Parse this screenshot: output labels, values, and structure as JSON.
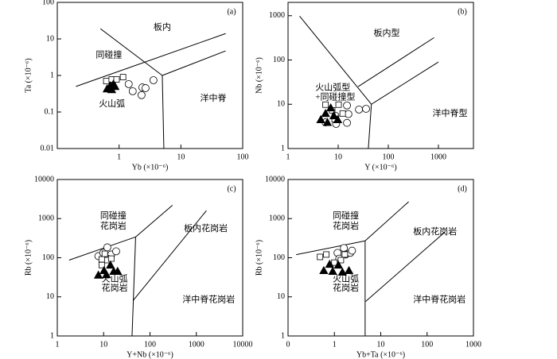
{
  "chart_data": [
    {
      "type": "scatter",
      "panel_label": "(a)",
      "x_label": "Yb (×10⁻⁶)",
      "y_label": "Ta (×10⁻⁶)",
      "log_x": true,
      "log_y": true,
      "xlim": [
        0.1,
        100
      ],
      "xticks": [
        1,
        10,
        100
      ],
      "ylim": [
        0.01,
        100
      ],
      "yticks": [
        0.01,
        0.1,
        1,
        10,
        100
      ],
      "series": [
        {
          "marker": "circle",
          "color": "#000000",
          "x": [
            1.43,
            1.66,
            2.31,
            2.38,
            2.68,
            3.6
          ],
          "y": [
            0.58,
            0.37,
            0.29,
            0.47,
            0.45,
            0.74
          ]
        },
        {
          "marker": "square",
          "color": "#000000",
          "x": [
            0.62,
            0.76,
            0.91,
            1.16
          ],
          "y": [
            0.7,
            0.78,
            0.78,
            0.9
          ]
        },
        {
          "marker": "triangle",
          "color": "#000000",
          "x": [
            0.64,
            0.72,
            0.81,
            0.76,
            0.86
          ],
          "y": [
            0.43,
            0.52,
            0.58,
            0.41,
            0.5
          ]
        }
      ],
      "boundaries": [
        {
          "x": [
            0.2,
            53
          ],
          "y": [
            0.5,
            14
          ]
        },
        {
          "x": [
            0.5,
            5
          ],
          "y": [
            19,
            1
          ]
        },
        {
          "x": [
            5,
            53
          ],
          "y": [
            1,
            4.7
          ]
        },
        {
          "x": [
            5,
            5.3
          ],
          "y": [
            1,
            0.01
          ]
        }
      ],
      "annotations": [
        {
          "text": "板内",
          "x": 3.6,
          "y": 20
        },
        {
          "text": "同碰撞",
          "x": 0.42,
          "y": 3.5
        },
        {
          "text": "火山弧",
          "x": 0.47,
          "y": 0.16
        },
        {
          "text": "洋中脊",
          "x": 20.5,
          "y": 0.23
        }
      ]
    },
    {
      "type": "scatter",
      "panel_label": "(b)",
      "x_label": "Y (×10⁻⁶)",
      "y_label": "Nb (×10⁻⁶)",
      "log_x": true,
      "log_y": true,
      "xlim": [
        1,
        5000
      ],
      "xticks": [
        1,
        10,
        100,
        1000
      ],
      "ylim": [
        1,
        2000
      ],
      "yticks": [
        1,
        10,
        100,
        1000
      ],
      "series": [
        {
          "marker": "circle",
          "color": "#000000",
          "x": [
            5.6,
            8.8,
            9.1,
            15,
            16,
            15,
            26,
            36
          ],
          "y": [
            3.9,
            5.5,
            3.6,
            9.4,
            6,
            3.8,
            7.6,
            7.9
          ]
        },
        {
          "marker": "square",
          "color": "#000000",
          "x": [
            5.6,
            7.6,
            10.2,
            12.3,
            8.5
          ],
          "y": [
            9.8,
            7.3,
            9.8,
            6.2,
            4.6
          ]
        },
        {
          "marker": "triangle",
          "color": "#000000",
          "x": [
            4.5,
            5.6,
            7.1,
            6.1,
            8.2,
            9.8
          ],
          "y": [
            4.5,
            6.2,
            8.3,
            3.9,
            5.5,
            4.5
          ]
        }
      ],
      "boundaries": [
        {
          "x": [
            1.7,
            46
          ],
          "y": [
            980,
            10
          ]
        },
        {
          "x": [
            25,
            820
          ],
          "y": [
            25,
            320
          ]
        },
        {
          "x": [
            46,
            1000
          ],
          "y": [
            10,
            90
          ]
        },
        {
          "x": [
            46,
            40
          ],
          "y": [
            10,
            1
          ]
        }
      ],
      "annotations": [
        {
          "text": "板内型",
          "x": 51,
          "y": 390
        },
        {
          "text": "火山弧型",
          "x": 3.5,
          "y": 23
        },
        {
          "text": "+同碰撞型",
          "x": 3.5,
          "y": 14
        },
        {
          "text": "洋中脊型",
          "x": 760,
          "y": 6
        }
      ]
    },
    {
      "type": "scatter",
      "panel_label": "(c)",
      "x_label": "Y+Nb (×10⁻⁶)",
      "y_label": "Rb (×10⁻⁶)",
      "log_x": true,
      "log_y": true,
      "xlim": [
        1,
        10000
      ],
      "xticks": [
        1,
        10,
        100,
        1000,
        10000
      ],
      "ylim": [
        1,
        10000
      ],
      "yticks": [
        1,
        10,
        100,
        1000,
        10000
      ],
      "series": [
        {
          "marker": "circle",
          "color": "#000000",
          "x": [
            7.7,
            9.8,
            12,
            14.6,
            18.6,
            12
          ],
          "y": [
            110,
            133,
            184,
            121,
            146,
            95
          ]
        },
        {
          "marker": "square",
          "color": "#000000",
          "x": [
            9.1,
            10.6,
            12,
            14.6,
            9.1
          ],
          "y": [
            91,
            126,
            87,
            95,
            65
          ]
        },
        {
          "marker": "triangle",
          "color": "#000000",
          "x": [
            7.7,
            10.2,
            11.5,
            14,
            16.5,
            20
          ],
          "y": [
            36,
            47,
            37,
            65,
            45,
            45
          ]
        }
      ],
      "boundaries": [
        {
          "x": [
            1.8,
            49
          ],
          "y": [
            87,
            340
          ]
        },
        {
          "x": [
            49,
            306
          ],
          "y": [
            340,
            2200
          ]
        },
        {
          "x": [
            49,
            41
          ],
          "y": [
            340,
            1
          ]
        },
        {
          "x": [
            43,
            1650
          ],
          "y": [
            8,
            1600
          ]
        }
      ],
      "annotations": [
        {
          "text": "同碰撞",
          "x": 8.4,
          "y": 1150
        },
        {
          "text": "花岗岩",
          "x": 8.4,
          "y": 620
        },
        {
          "text": "板内花岗岩",
          "x": 540,
          "y": 540
        },
        {
          "text": "火山弧",
          "x": 9,
          "y": 28
        },
        {
          "text": "花岗岩",
          "x": 9,
          "y": 16
        },
        {
          "text": "洋中脊花岗岩",
          "x": 500,
          "y": 8.3
        }
      ]
    },
    {
      "type": "scatter",
      "panel_label": "(d)",
      "x_label": "Yb+Ta (×10⁻⁶)",
      "y_label": "Rb (×10⁻⁶)",
      "log_x": true,
      "log_y": true,
      "xlim": [
        0.1,
        1000
      ],
      "xticks": [
        {
          "value": 0.1,
          "label": "0"
        },
        1,
        10,
        100,
        1000
      ],
      "ylim": [
        1,
        10000
      ],
      "yticks": [
        1,
        10,
        100,
        1000,
        10000
      ],
      "series": [
        {
          "marker": "circle",
          "color": "#000000",
          "x": [
            1.17,
            1.6,
            1.75,
            2.2,
            2.4,
            1.27
          ],
          "y": [
            133,
            177,
            121,
            133,
            152,
            95
          ]
        },
        {
          "marker": "square",
          "color": "#000000",
          "x": [
            0.49,
            0.67,
            1.0,
            1.38,
            1.68
          ],
          "y": [
            105,
            121,
            75,
            87,
            121
          ]
        },
        {
          "marker": "triangle",
          "color": "#000000",
          "x": [
            0.59,
            0.92,
            1.22,
            1.49,
            2.06,
            0.79
          ],
          "y": [
            47,
            45,
            65,
            43,
            47,
            68
          ]
        }
      ],
      "boundaries": [
        {
          "x": [
            0.15,
            4.6
          ],
          "y": [
            120,
            270
          ]
        },
        {
          "x": [
            4.6,
            40
          ],
          "y": [
            270,
            2700
          ]
        },
        {
          "x": [
            4.6,
            4.6
          ],
          "y": [
            270,
            1
          ]
        },
        {
          "x": [
            4.7,
            240
          ],
          "y": [
            7.6,
            450
          ]
        }
      ],
      "annotations": [
        {
          "text": "同碰撞",
          "x": 0.92,
          "y": 1150
        },
        {
          "text": "花岗岩",
          "x": 0.92,
          "y": 620
        },
        {
          "text": "板内花岗岩",
          "x": 50,
          "y": 450
        },
        {
          "text": "火山弧",
          "x": 0.92,
          "y": 28
        },
        {
          "text": "花岗岩",
          "x": 0.92,
          "y": 16
        },
        {
          "text": "洋中脊花岗岩",
          "x": 50,
          "y": 8.3
        }
      ]
    }
  ]
}
